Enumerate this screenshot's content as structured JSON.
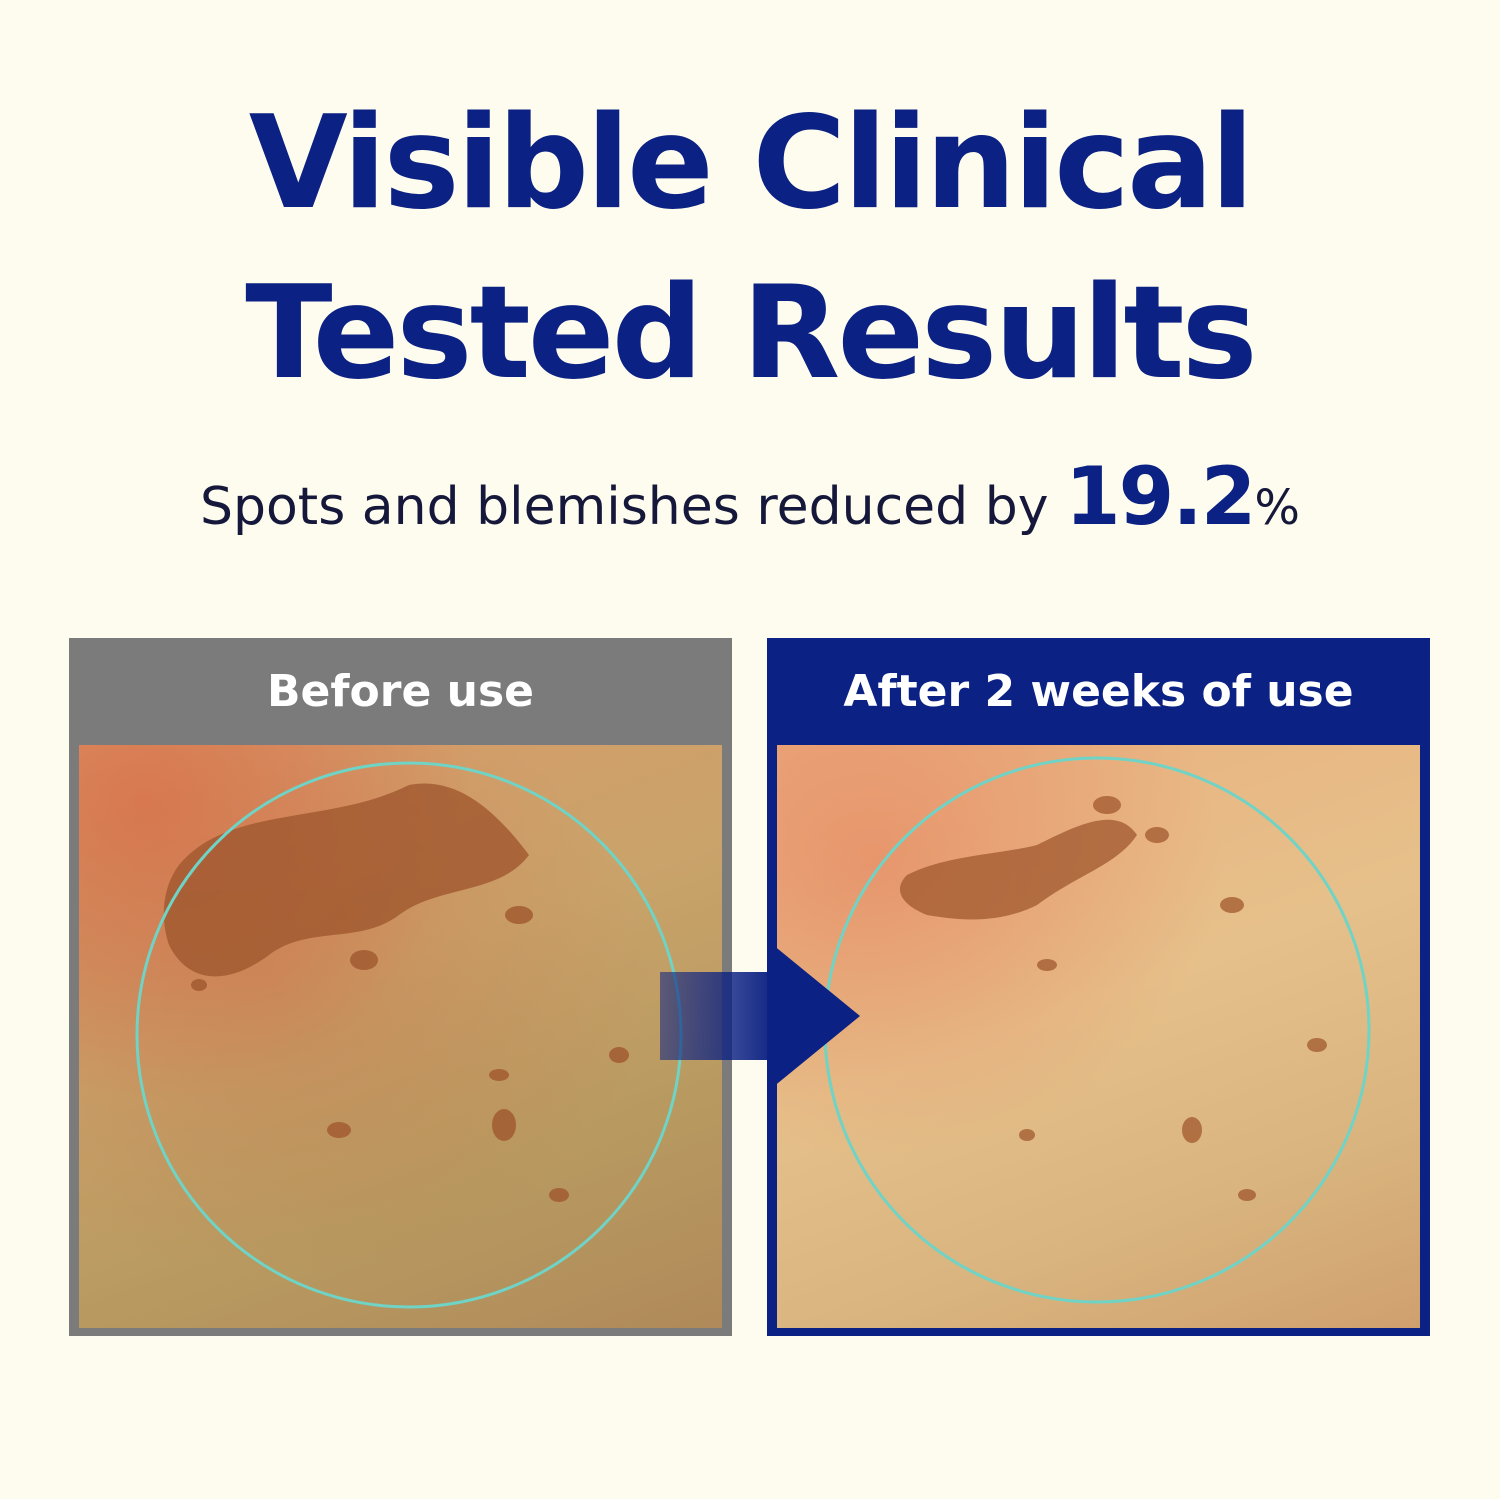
{
  "headline": {
    "line1": "Visible Clinical",
    "line2": "Tested Results"
  },
  "subheadline": {
    "text": "Spots and blemishes reduced by",
    "value": "19.2",
    "unit": "%"
  },
  "panels": {
    "before": {
      "label": "Before use"
    },
    "after": {
      "label": "After 2 weeks of use"
    }
  },
  "colors": {
    "brand": "#0b2183",
    "before_frame": "#7b7b7b",
    "background": "#fdfcee",
    "circle": "#6fd3c6"
  }
}
